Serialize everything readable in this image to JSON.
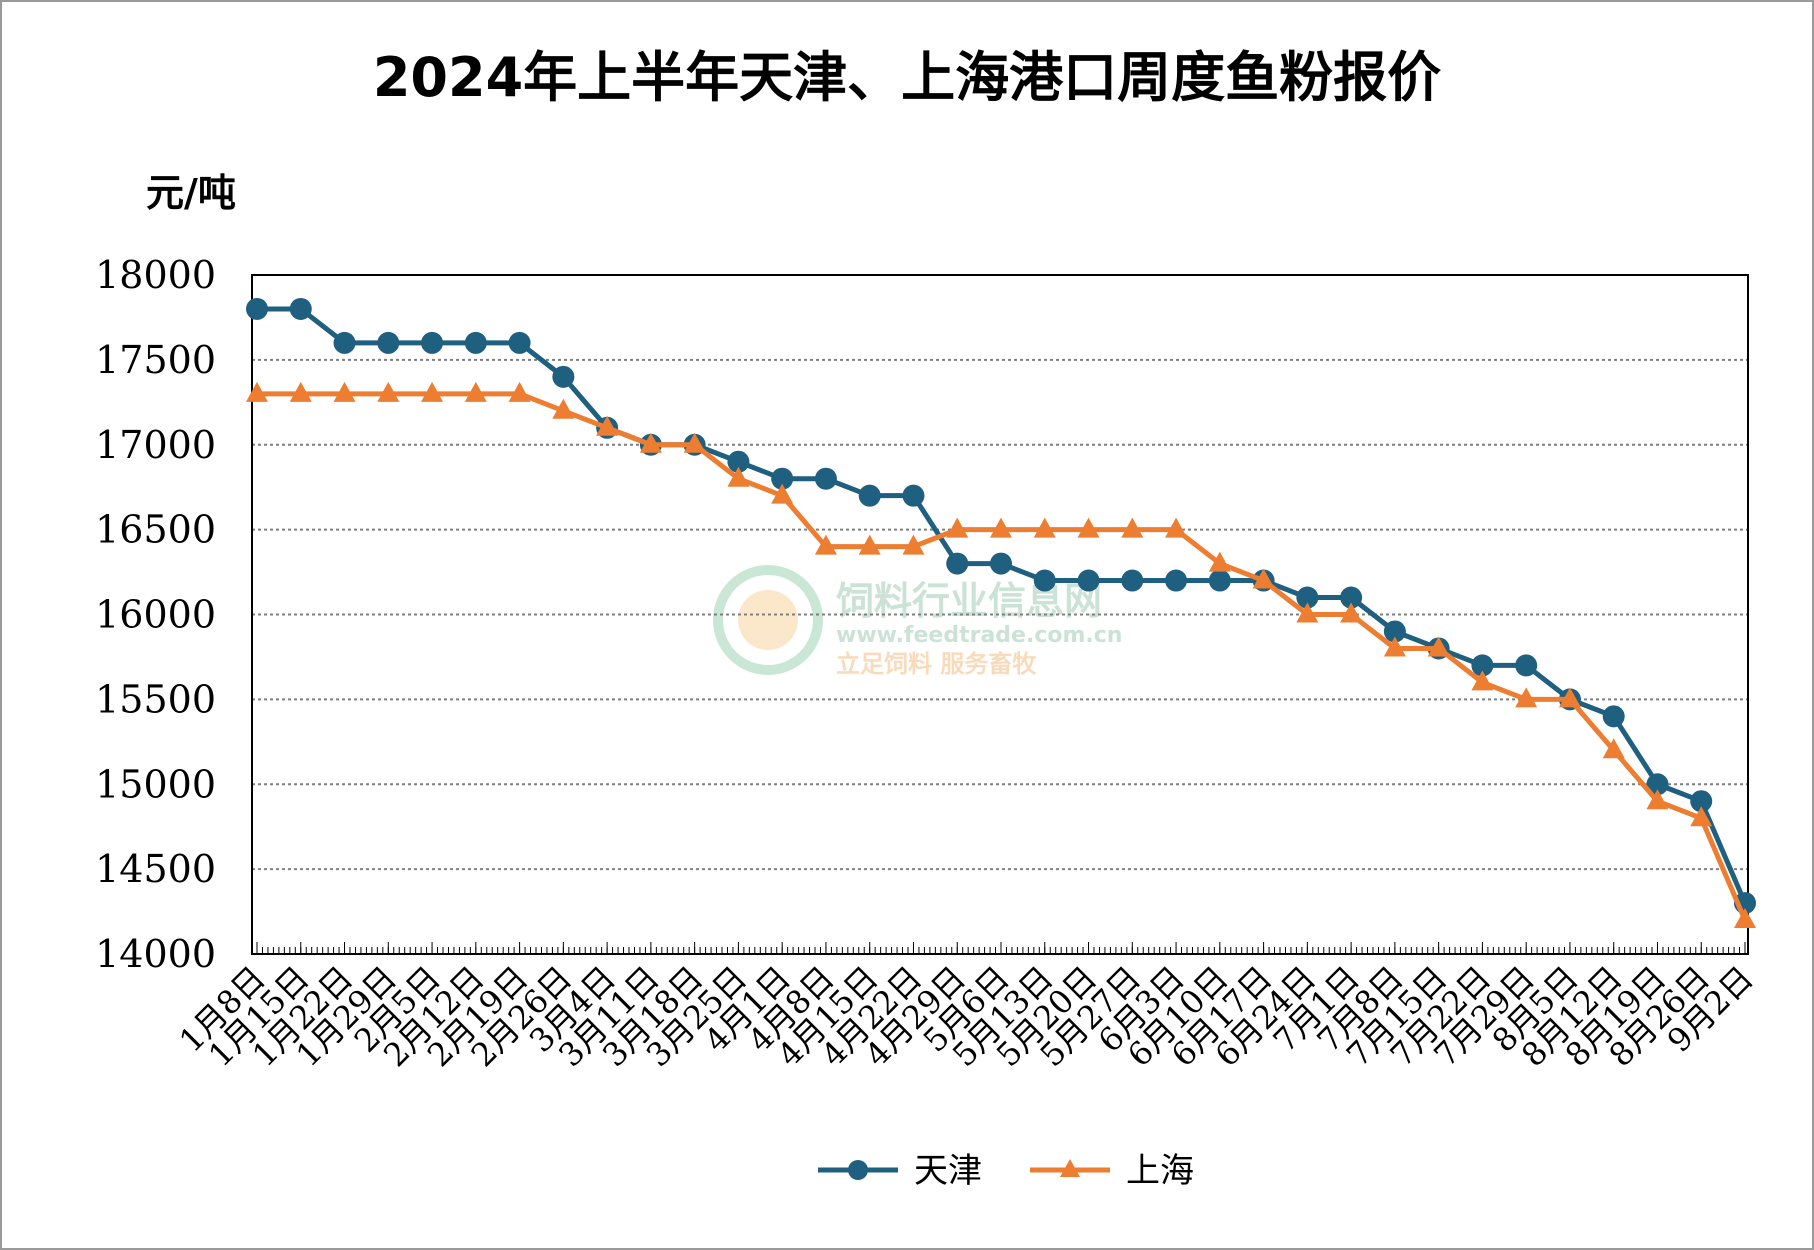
{
  "chart_data": {
    "type": "line",
    "title": "2024年上半年天津、上海港口周度鱼粉报价",
    "ylabel": "元/吨",
    "xlabel": "",
    "ylim": [
      14000,
      18000
    ],
    "yticks": [
      14000,
      14500,
      15000,
      15500,
      16000,
      16500,
      17000,
      17500,
      18000
    ],
    "grid": "horizontal dotted",
    "legend": "bottom",
    "categories": [
      "1月8日",
      "1月15日",
      "1月22日",
      "1月29日",
      "2月5日",
      "2月12日",
      "2月19日",
      "2月26日",
      "3月4日",
      "3月11日",
      "3月18日",
      "3月25日",
      "4月1日",
      "4月8日",
      "4月15日",
      "4月22日",
      "4月29日",
      "5月6日",
      "5月13日",
      "5月20日",
      "5月27日",
      "6月3日",
      "6月10日",
      "6月17日",
      "6月24日",
      "7月1日",
      "7月8日",
      "7月15日",
      "7月22日",
      "7月29日",
      "8月5日",
      "8月12日",
      "8月19日",
      "8月26日",
      "9月2日"
    ],
    "series": [
      {
        "name": "天津",
        "color": "#1f5f7f",
        "marker": "circle",
        "values": [
          17800,
          17800,
          17600,
          17600,
          17600,
          17600,
          17600,
          17400,
          17100,
          17000,
          17000,
          16900,
          16800,
          16800,
          16700,
          16700,
          16300,
          16300,
          16200,
          16200,
          16200,
          16200,
          16200,
          16200,
          16100,
          16100,
          15900,
          15800,
          15700,
          15700,
          15500,
          15400,
          15000,
          14900,
          14300
        ]
      },
      {
        "name": "上海",
        "color": "#ed7d31",
        "marker": "triangle",
        "values": [
          17300,
          17300,
          17300,
          17300,
          17300,
          17300,
          17300,
          17200,
          17100,
          17000,
          17000,
          16800,
          16700,
          16400,
          16400,
          16400,
          16500,
          16500,
          16500,
          16500,
          16500,
          16500,
          16300,
          16200,
          16000,
          16000,
          15800,
          15800,
          15600,
          15500,
          15500,
          15200,
          14900,
          14800,
          14200
        ]
      }
    ]
  },
  "watermark": {
    "name": "饲料行业信息网",
    "url": "www.feedtrade.com.cn",
    "slogan": "立足饲料   服务畜牧"
  }
}
